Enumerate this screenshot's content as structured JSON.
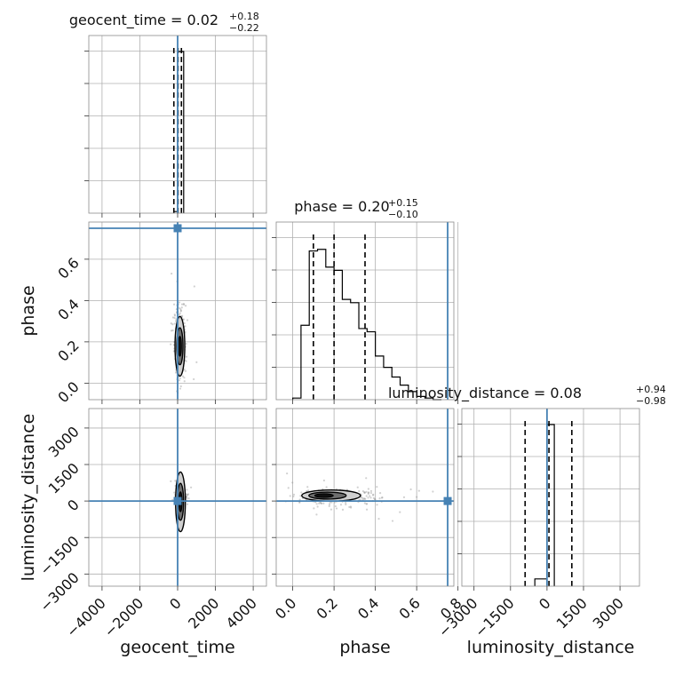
{
  "colors": {
    "truth": "#4682b4",
    "hist": "#000000",
    "grid": "#b0b0b0",
    "samples": "#9a9a9a"
  },
  "chart_data": {
    "type": "corner",
    "parameters": [
      "geocent_time",
      "phase",
      "luminosity_distance"
    ],
    "truth": {
      "geocent_time": 0,
      "phase": 0.75,
      "luminosity_distance": 0
    },
    "ranges": {
      "geocent_time": [
        -4700,
        4700
      ],
      "phase": [
        -0.08,
        0.78
      ],
      "luminosity_distance": [
        -3500,
        3800
      ]
    },
    "ticks": {
      "geocent_time": [
        -4000,
        -2000,
        0,
        2000,
        4000
      ],
      "phase": [
        0.0,
        0.2,
        0.4,
        0.6,
        0.8
      ],
      "luminosity_distance": [
        -3000,
        -1500,
        0,
        1500,
        3000
      ]
    },
    "tick_labels": {
      "geocent_time": [
        "−4000",
        "−2000",
        "0",
        "2000",
        "4000"
      ],
      "phase": [
        "0.0",
        "0.2",
        "0.4",
        "0.6",
        "0.8"
      ],
      "luminosity_distance": [
        "−3000",
        "−1500",
        "0",
        "1500",
        "3000"
      ]
    },
    "axis_labels": {
      "geocent_time": "geocent_time",
      "phase": "phase",
      "luminosity_distance": "luminosity_distance"
    },
    "titles": {
      "geocent_time": {
        "main": "geocent_time = 0.02",
        "plus": "+0.18",
        "minus": "−0.22"
      },
      "phase": {
        "main": "phase = 0.20",
        "plus": "+0.15",
        "minus": "−0.10"
      },
      "luminosity_distance": {
        "main": "luminosity_distance = 0.08",
        "plus": "+0.94",
        "minus": "−0.98"
      }
    },
    "histograms": {
      "geocent_time": {
        "edges": [
          -200,
          -50,
          0,
          320
        ],
        "heights": [
          0.01,
          0.01,
          1.0
        ]
      },
      "phase": {
        "edges": [
          0.0,
          0.04,
          0.08,
          0.12,
          0.16,
          0.2,
          0.24,
          0.28,
          0.32,
          0.36,
          0.4,
          0.44,
          0.48,
          0.52,
          0.56,
          0.6,
          0.64,
          0.68,
          0.72
        ],
        "heights": [
          0.01,
          0.46,
          0.92,
          0.93,
          0.82,
          0.8,
          0.62,
          0.6,
          0.44,
          0.42,
          0.27,
          0.2,
          0.14,
          0.09,
          0.05,
          0.02,
          0.01,
          0.0
        ]
      },
      "luminosity_distance": {
        "edges": [
          -500,
          -50,
          0,
          300
        ],
        "heights": [
          0.045,
          0.045,
          1.0
        ]
      }
    },
    "quantiles": {
      "geocent_time": [
        -200,
        20,
        200
      ],
      "phase": [
        0.1,
        0.2,
        0.35
      ],
      "luminosity_distance": [
        -900,
        80,
        1020
      ]
    },
    "samples_2d": {
      "phase_vs_geocent_time": {
        "center": [
          120,
          0.2
        ],
        "spread": [
          150,
          0.09
        ]
      },
      "luminosity_distance_vs_geocent_time": {
        "center": [
          150,
          150
        ],
        "spread": [
          120,
          120
        ]
      },
      "luminosity_distance_vs_phase": {
        "center": [
          0.22,
          150
        ],
        "spread": [
          0.1,
          150
        ]
      }
    }
  }
}
